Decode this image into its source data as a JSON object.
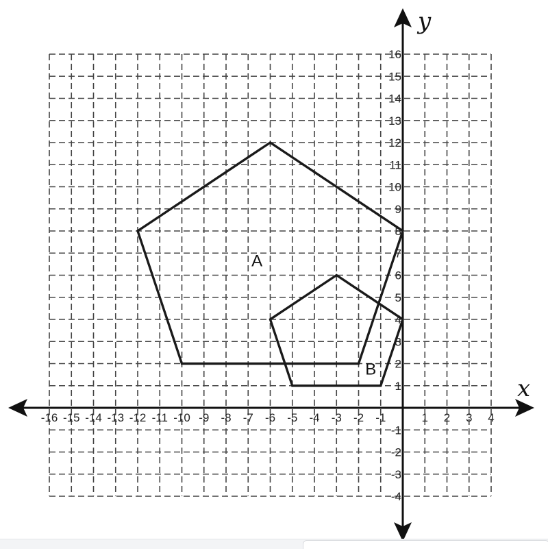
{
  "chart_data": {
    "type": "coordinate-plane",
    "xlabel": "x",
    "ylabel": "y",
    "xlim": [
      -16,
      4
    ],
    "ylim": [
      -4,
      16
    ],
    "grid": true,
    "x_tick_labels": [
      "-16",
      "-15",
      "-14",
      "-13",
      "-12",
      "-11",
      "-10",
      "-9",
      "-8",
      "-7",
      "-6",
      "-5",
      "-4",
      "-3",
      "-2",
      "-1",
      "1",
      "2",
      "3",
      "4"
    ],
    "y_tick_labels": [
      "16",
      "15",
      "14",
      "13",
      "12",
      "11",
      "10",
      "9",
      "8",
      "7",
      "6",
      "5",
      "4",
      "3",
      "2",
      "1",
      "-1",
      "-2",
      "-3",
      "-4"
    ],
    "shapes": [
      {
        "label": "A",
        "vertices": [
          [
            -6,
            12
          ],
          [
            0,
            8
          ],
          [
            -2,
            2
          ],
          [
            -10,
            2
          ],
          [
            -12,
            8
          ]
        ]
      },
      {
        "label": "B",
        "vertices": [
          [
            -3,
            6
          ],
          [
            0,
            4
          ],
          [
            -1,
            1
          ],
          [
            -5,
            1
          ],
          [
            -6,
            4
          ]
        ]
      }
    ]
  }
}
